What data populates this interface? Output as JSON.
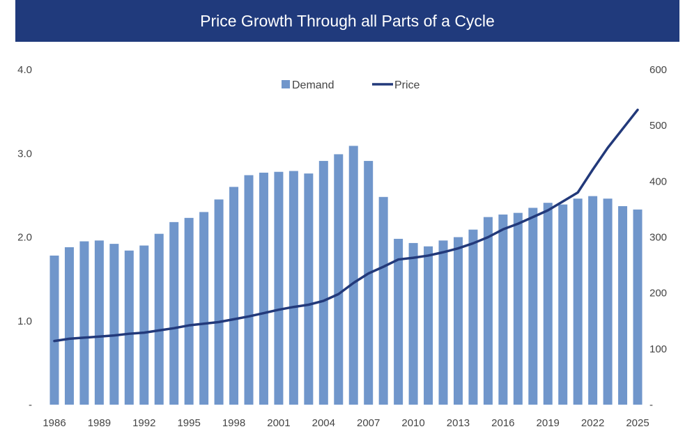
{
  "chart_data": {
    "type": "bar+line",
    "title": "Price Growth Through all Parts of a Cycle",
    "legend_position": "top-center",
    "grid": false,
    "colors": {
      "Demand": "#7096cb",
      "Price": "#22397a",
      "title_bar": "#203a7c"
    },
    "x": [
      1986,
      1987,
      1988,
      1989,
      1990,
      1991,
      1992,
      1993,
      1994,
      1995,
      1996,
      1997,
      1998,
      1999,
      2000,
      2001,
      2002,
      2003,
      2004,
      2005,
      2006,
      2007,
      2008,
      2009,
      2010,
      2011,
      2012,
      2013,
      2014,
      2015,
      2016,
      2017,
      2018,
      2019,
      2020,
      2021,
      2022,
      2023,
      2024,
      2025
    ],
    "x_tick_labels": [
      "1986",
      "1989",
      "1992",
      "1995",
      "1998",
      "2001",
      "2004",
      "2007",
      "2010",
      "2013",
      "2016",
      "2019",
      "2022",
      "2025"
    ],
    "y_left": {
      "range": [
        0,
        4
      ],
      "tick_labels": [
        "-",
        "1.0",
        "2.0",
        "3.0",
        "4.0"
      ]
    },
    "y_right": {
      "range": [
        0,
        600
      ],
      "tick_labels": [
        "-",
        "100",
        "200",
        "300",
        "400",
        "500",
        "600"
      ]
    },
    "series": [
      {
        "name": "Demand",
        "type": "bar",
        "axis": "left",
        "values": [
          1.78,
          1.88,
          1.95,
          1.96,
          1.92,
          1.84,
          1.9,
          2.04,
          2.18,
          2.23,
          2.3,
          2.45,
          2.6,
          2.74,
          2.77,
          2.78,
          2.79,
          2.76,
          2.91,
          2.99,
          3.09,
          2.91,
          2.48,
          1.98,
          1.93,
          1.89,
          1.96,
          2.0,
          2.09,
          2.24,
          2.27,
          2.29,
          2.35,
          2.41,
          2.39,
          2.46,
          2.49,
          2.46,
          2.37,
          2.33
        ]
      },
      {
        "name": "Price",
        "type": "line",
        "axis": "right",
        "values": [
          114,
          118,
          120,
          122,
          124,
          127,
          129,
          133,
          137,
          142,
          145,
          148,
          153,
          158,
          164,
          170,
          175,
          179,
          186,
          198,
          218,
          235,
          247,
          260,
          263,
          267,
          273,
          280,
          289,
          300,
          314,
          324,
          336,
          348,
          364,
          380,
          421,
          460,
          494,
          528
        ]
      }
    ]
  }
}
